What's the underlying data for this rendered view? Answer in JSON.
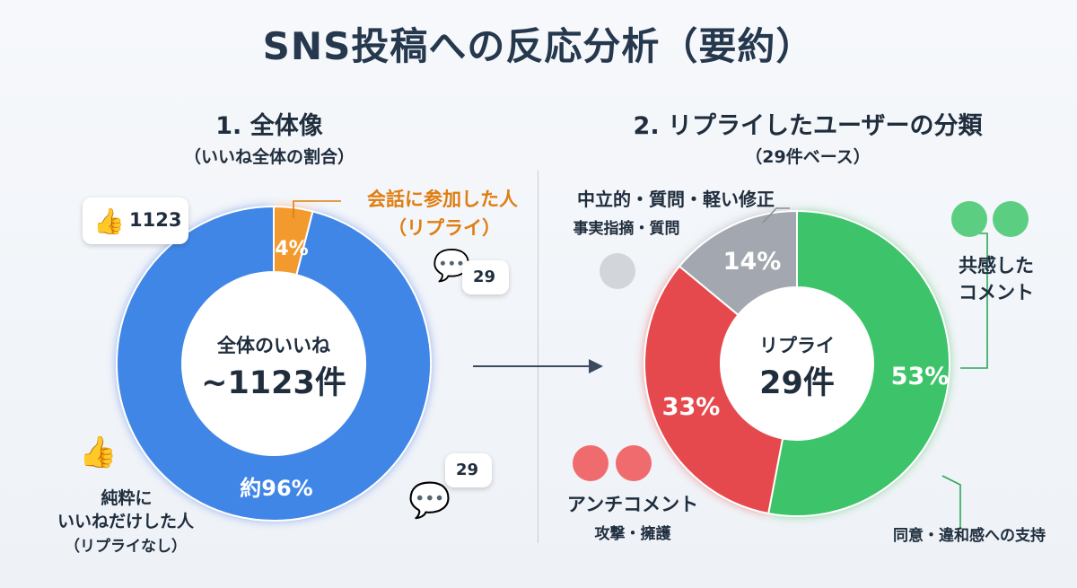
{
  "title": "SNS投稿への反応分析（要約）",
  "left": {
    "heading": "1. 全体像",
    "subheading": "（いいね全体の割合）",
    "center_label": "全体のいいね",
    "center_value": "~1123件",
    "like_card_value": "1123",
    "reply_card_value": "29",
    "reply_card2_value": "29",
    "annotation_reply_line1": "会話に参加した人",
    "annotation_reply_line2": "（リプライ）",
    "annotation_like_line1": "純粋に",
    "annotation_like_line2": "いいねだけした人",
    "annotation_like_line3": "（リプライなし）",
    "slice_reply_label": "4%",
    "slice_like_label": "約96%"
  },
  "right": {
    "heading": "2. リプライしたユーザーの分類",
    "subheading": "（29件ベース）",
    "center_label": "リプライ",
    "center_value": "29件",
    "annotation_neutral_line1": "中立的・質問・軽い修正",
    "annotation_neutral_line2": "事実指摘・質問",
    "annotation_positive_line1": "共感した",
    "annotation_positive_line2": "コメント",
    "annotation_negative_line1": "アンチコメント",
    "annotation_negative_line2": "攻撃・擁護",
    "annotation_support": "同意・違和感への支持",
    "slice_green_label": "53%",
    "slice_red_label": "33%",
    "slice_gray_label": "14%"
  },
  "colors": {
    "blue": "#3f86e6",
    "orange": "#f29a2e",
    "green": "#3cc36a",
    "red": "#e5484d",
    "gray": "#a3a8b0",
    "orange_text": "#e07d10"
  },
  "chart_data": [
    {
      "type": "pie",
      "title": "1. 全体像",
      "categories": [
        "会話に参加した人（リプライ）",
        "純粋にいいねだけした人（リプライなし）"
      ],
      "values": [
        4,
        96
      ],
      "total": 1123
    },
    {
      "type": "pie",
      "title": "2. リプライしたユーザーの分類",
      "categories": [
        "共感したコメント",
        "アンチコメント",
        "中立的・質問・軽い修正"
      ],
      "values": [
        53,
        33,
        14
      ],
      "total": 29
    }
  ]
}
